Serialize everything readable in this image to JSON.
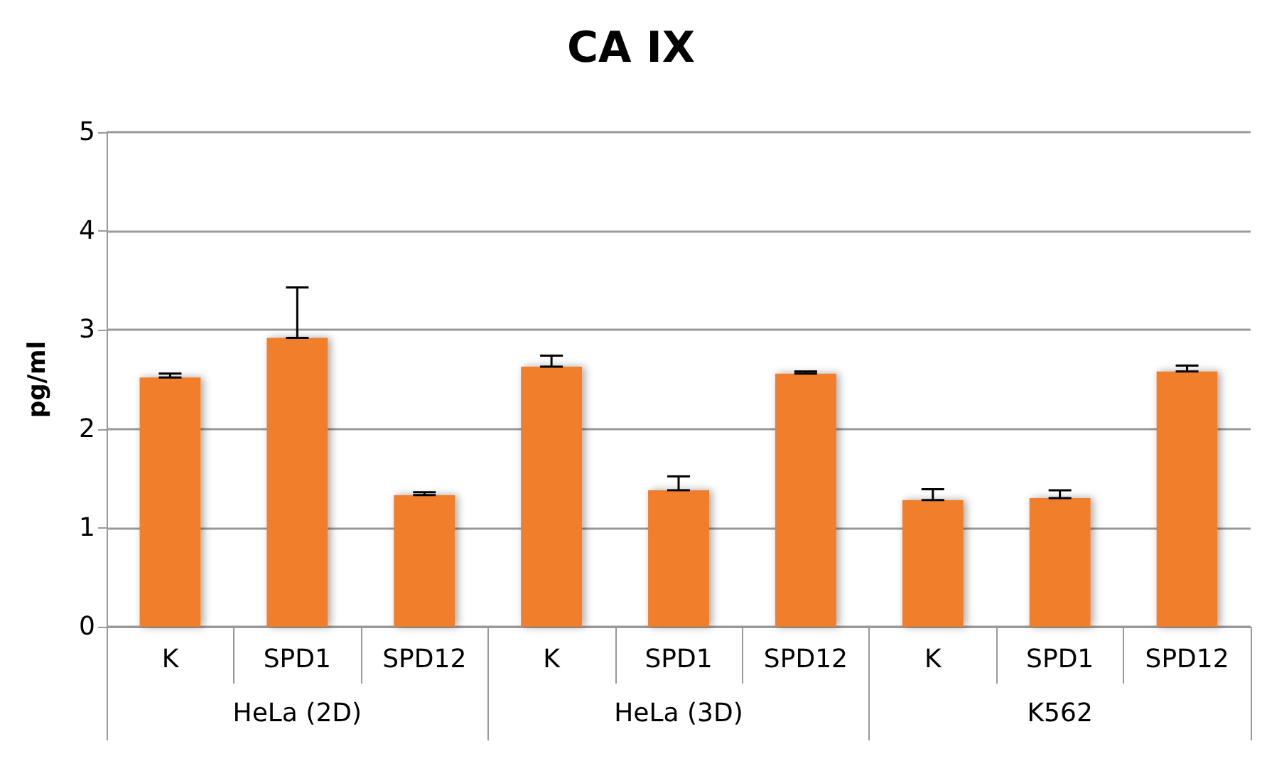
{
  "chart_data": {
    "type": "bar",
    "title": "CA IX",
    "ylabel": "pg/ml",
    "categories": [
      "K",
      "SPD1",
      "SPD12",
      "K",
      "SPD1",
      "SPD12",
      "K",
      "SPD1",
      "SPD12"
    ],
    "annotations": [
      "HeLa (2D)",
      "HeLa (3D)",
      "K562"
    ],
    "values": [
      2.52,
      2.92,
      1.33,
      2.63,
      1.38,
      2.56,
      1.28,
      1.3,
      2.58
    ],
    "errors": [
      [
        2.52,
        2.56
      ],
      [
        2.92,
        3.43
      ],
      [
        1.33,
        1.36
      ],
      [
        2.63,
        2.74
      ],
      [
        1.38,
        1.52
      ],
      [
        2.56,
        2.58
      ],
      [
        1.28,
        1.39
      ],
      [
        1.3,
        1.38
      ],
      [
        2.58,
        2.64
      ]
    ],
    "color": "#f07e2c",
    "ylim": [
      0,
      5
    ],
    "yticks": [
      0,
      1,
      2,
      3,
      4,
      5
    ],
    "grid": "y"
  }
}
